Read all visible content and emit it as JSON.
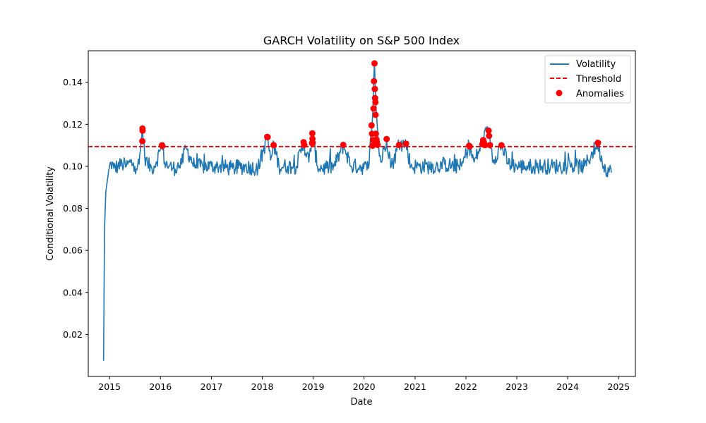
{
  "chart_data": {
    "type": "line",
    "title": "GARCH Volatility on S&P 500 Index",
    "xlabel": "Date",
    "ylabel": "Conditional Volatility",
    "xlim": [
      "2014-08-01",
      "2025-05-01"
    ],
    "ylim": [
      0.0,
      0.155
    ],
    "x_ticks": [
      "2015",
      "2016",
      "2017",
      "2018",
      "2019",
      "2020",
      "2021",
      "2022",
      "2023",
      "2024",
      "2025"
    ],
    "y_ticks": [
      0.02,
      0.04,
      0.06,
      0.08,
      0.1,
      0.12,
      0.14
    ],
    "grid": false,
    "legend_position": "top-right",
    "colors": {
      "volatility": "#1f77b4",
      "threshold": "#ff0000",
      "anomalies": "#ff0000"
    },
    "series": [
      {
        "name": "Volatility",
        "x": [
          "2014-11-19",
          "2014-11-26",
          "2014-12-05",
          "2014-12-20",
          "2015-01-10",
          "2015-02-01",
          "2015-03-01",
          "2015-04-01",
          "2015-05-01",
          "2015-06-01",
          "2015-07-01",
          "2015-08-01",
          "2015-08-25",
          "2015-09-10",
          "2015-10-01",
          "2015-11-01",
          "2015-12-01",
          "2016-01-12",
          "2016-02-01",
          "2016-03-01",
          "2016-04-01",
          "2016-05-01",
          "2016-06-01",
          "2016-07-01",
          "2016-09-01",
          "2016-11-01",
          "2017-01-01",
          "2017-03-01",
          "2017-06-01",
          "2017-09-01",
          "2017-12-01",
          "2018-02-06",
          "2018-03-01",
          "2018-03-26",
          "2018-05-01",
          "2018-07-01",
          "2018-09-01",
          "2018-10-25",
          "2018-12-01",
          "2018-12-26",
          "2019-02-01",
          "2019-04-01",
          "2019-06-01",
          "2019-08-06",
          "2019-10-01",
          "2019-12-01",
          "2020-02-01",
          "2020-02-27",
          "2020-03-16",
          "2020-03-25",
          "2020-04-15",
          "2020-05-01",
          "2020-06-11",
          "2020-07-15",
          "2020-09-08",
          "2020-10-28",
          "2020-12-01",
          "2021-02-01",
          "2021-04-01",
          "2021-06-01",
          "2021-08-01",
          "2021-10-01",
          "2021-12-01",
          "2022-01-24",
          "2022-03-01",
          "2022-05-09",
          "2022-06-13",
          "2022-07-15",
          "2022-09-13",
          "2022-11-01",
          "2023-01-01",
          "2023-03-01",
          "2023-05-01",
          "2023-07-01",
          "2023-09-01",
          "2023-11-01",
          "2024-01-01",
          "2024-03-01",
          "2024-05-01",
          "2024-08-05",
          "2024-09-15",
          "2024-11-10"
        ],
        "values": [
          0.0075,
          0.071,
          0.088,
          0.095,
          0.102,
          0.099,
          0.1,
          0.101,
          0.1,
          0.102,
          0.1,
          0.101,
          0.118,
          0.105,
          0.101,
          0.099,
          0.102,
          0.11,
          0.102,
          0.1,
          0.099,
          0.1,
          0.101,
          0.109,
          0.1,
          0.1,
          0.1,
          0.1,
          0.099,
          0.1,
          0.099,
          0.114,
          0.103,
          0.11,
          0.1,
          0.1,
          0.1,
          0.111,
          0.102,
          0.115,
          0.1,
          0.099,
          0.1,
          0.11,
          0.1,
          0.1,
          0.099,
          0.119,
          0.149,
          0.13,
          0.109,
          0.102,
          0.113,
          0.1,
          0.11,
          0.111,
          0.1,
          0.1,
          0.1,
          0.1,
          0.101,
          0.1,
          0.1,
          0.11,
          0.102,
          0.113,
          0.117,
          0.103,
          0.11,
          0.101,
          0.1,
          0.1,
          0.1,
          0.1,
          0.1,
          0.1,
          0.1,
          0.1,
          0.1,
          0.111,
          0.1,
          0.097
        ]
      },
      {
        "name": "Threshold",
        "value": 0.1094
      },
      {
        "name": "Anomalies",
        "x": [
          "2015-08-24",
          "2015-08-25",
          "2015-08-26",
          "2016-01-12",
          "2016-01-15",
          "2018-02-05",
          "2018-02-08",
          "2018-03-23",
          "2018-10-24",
          "2018-10-29",
          "2018-12-24",
          "2018-12-26",
          "2018-12-27",
          "2018-12-28",
          "2019-08-05",
          "2020-02-24",
          "2020-02-27",
          "2020-03-02",
          "2020-03-05",
          "2020-03-09",
          "2020-03-12",
          "2020-03-16",
          "2020-03-18",
          "2020-03-20",
          "2020-03-23",
          "2020-03-24",
          "2020-03-26",
          "2020-03-30",
          "2020-04-01",
          "2020-04-03",
          "2020-04-07",
          "2020-06-11",
          "2020-09-08",
          "2020-10-28",
          "2022-01-24",
          "2022-01-28",
          "2022-04-29",
          "2022-05-05",
          "2022-05-09",
          "2022-05-18",
          "2022-06-13",
          "2022-06-16",
          "2022-06-22",
          "2022-09-13",
          "2024-08-05"
        ],
        "values": [
          0.112,
          0.118,
          0.117,
          0.11,
          0.1097,
          0.114,
          0.1139,
          0.1101,
          0.1115,
          0.1102,
          0.111,
          0.1157,
          0.1131,
          0.1112,
          0.1102,
          0.1195,
          0.1155,
          0.1098,
          0.1125,
          0.1275,
          0.1405,
          0.149,
          0.1368,
          0.1325,
          0.1305,
          0.1245,
          0.1155,
          0.1127,
          0.1118,
          0.1108,
          0.1102,
          0.113,
          0.1102,
          0.1108,
          0.1098,
          0.1095,
          0.1105,
          0.1125,
          0.1115,
          0.1101,
          0.117,
          0.1145,
          0.1101,
          0.11,
          0.1112
        ]
      }
    ]
  }
}
